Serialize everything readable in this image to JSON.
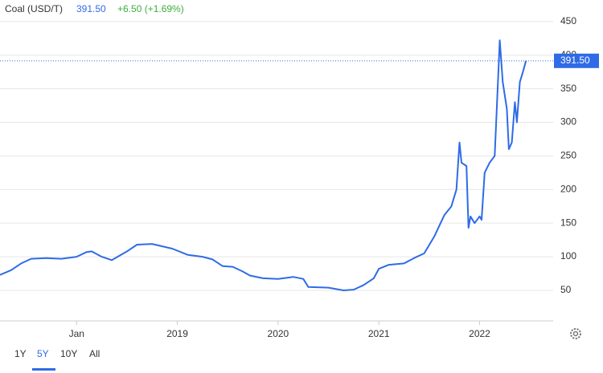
{
  "chart_data": {
    "type": "line",
    "title": "Coal (USD/T)",
    "last": "391.50",
    "change": "+6.50 (+1.69%)",
    "ranges": [
      "1Y",
      "5Y",
      "10Y",
      "All"
    ],
    "selected_range": "5Y",
    "color": "#2f6be6",
    "change_color": "#3cae3c",
    "grid": true,
    "x": [
      2017.24,
      2017.35,
      2017.45,
      2017.55,
      2017.7,
      2017.85,
      2018.0,
      2018.1,
      2018.15,
      2018.25,
      2018.35,
      2018.5,
      2018.6,
      2018.75,
      2018.95,
      2019.1,
      2019.25,
      2019.35,
      2019.45,
      2019.55,
      2019.65,
      2019.72,
      2019.85,
      2020.0,
      2020.15,
      2020.25,
      2020.3,
      2020.5,
      2020.65,
      2020.75,
      2020.85,
      2020.95,
      2021.0,
      2021.1,
      2021.25,
      2021.35,
      2021.45,
      2021.55,
      2021.65,
      2021.72,
      2021.77,
      2021.8,
      2021.82,
      2021.87,
      2021.89,
      2021.91,
      2021.95,
      2022.0,
      2022.02,
      2022.05,
      2022.1,
      2022.15,
      2022.2,
      2022.23,
      2022.27,
      2022.29,
      2022.32,
      2022.35,
      2022.37,
      2022.4,
      2022.43,
      2022.46
    ],
    "values": [
      73,
      80,
      90,
      97,
      98,
      97,
      100,
      107,
      108,
      100,
      95,
      108,
      118,
      119,
      112,
      103,
      100,
      96,
      86,
      85,
      78,
      72,
      68,
      67,
      70,
      67,
      55,
      54,
      50,
      51,
      58,
      68,
      82,
      88,
      90,
      98,
      105,
      130,
      162,
      175,
      200,
      270,
      240,
      235,
      143,
      160,
      150,
      160,
      155,
      225,
      240,
      250,
      422,
      360,
      320,
      260,
      270,
      330,
      300,
      360,
      375,
      391.5
    ],
    "xlim": [
      2017.24,
      2022.73
    ],
    "ylim": [
      4.6,
      482
    ],
    "xticks": [
      {
        "value": 2018,
        "label": "Jan"
      },
      2019,
      2020,
      2021,
      2022
    ],
    "yticks": [
      50,
      100,
      150,
      200,
      250,
      300,
      350,
      400,
      450
    ]
  }
}
